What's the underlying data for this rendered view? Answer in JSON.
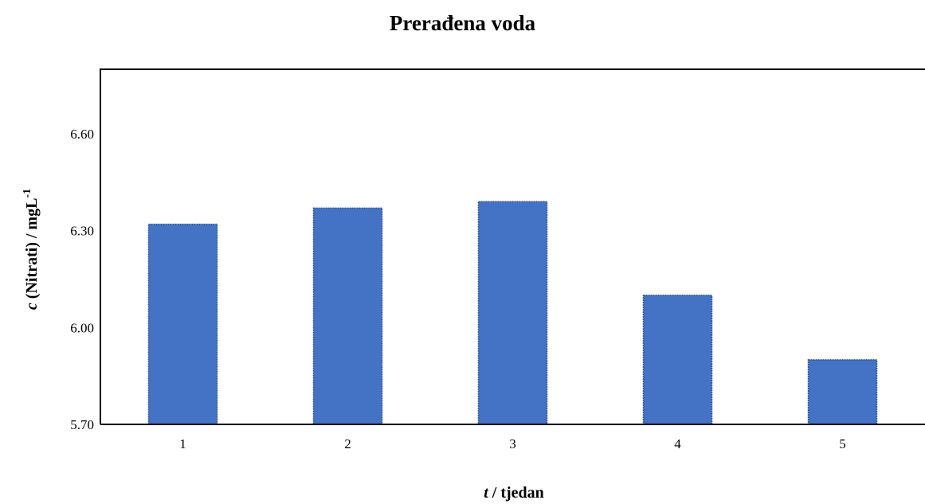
{
  "chart_data": {
    "type": "bar",
    "title": "Prerađena voda",
    "xlabel": {
      "italic": "t",
      "rest": " / tjedan"
    },
    "ylabel": {
      "italic": "c",
      "rest": " (Nitrati) / mgL",
      "superscript": "-1"
    },
    "categories": [
      "1",
      "2",
      "3",
      "4",
      "5"
    ],
    "values": [
      6.32,
      6.37,
      6.39,
      6.1,
      5.9
    ],
    "ylim": [
      5.7,
      6.8
    ],
    "yticks": [
      "5.70",
      "6.00",
      "6.30",
      "6.60"
    ],
    "ytick_values": [
      5.7,
      6.0,
      6.3,
      6.6
    ],
    "grid": false,
    "legend": "none",
    "bar_color": "#4472C4",
    "bar_border_color": "#2F5597"
  }
}
